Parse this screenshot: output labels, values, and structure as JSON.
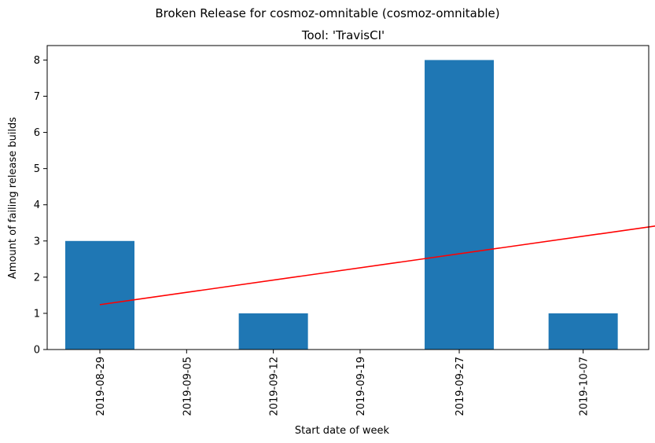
{
  "chart_data": {
    "type": "bar",
    "suptitle": "Broken Release for cosmoz-omnitable (cosmoz-omnitable)",
    "title": "Tool: 'TravisCI'",
    "xlabel": "Start date of week",
    "ylabel": "Amount of failing release builds",
    "categories": [
      "2019-08-29",
      "2019-09-05",
      "2019-09-12",
      "2019-09-19",
      "2019-09-27",
      "2019-10-07"
    ],
    "values": [
      3,
      0,
      1,
      0,
      8,
      1
    ],
    "bar_color": "#1f77b4",
    "trend": {
      "color": "#ff0000",
      "from": {
        "x": "2019-08-29",
        "y": 1.24
      },
      "to": {
        "x": "2019-10-14",
        "y": 3.47
      }
    },
    "ylim": [
      0,
      8.4
    ],
    "yticks": [
      0,
      1,
      2,
      3,
      4,
      5,
      6,
      7,
      8
    ],
    "grid": false
  }
}
